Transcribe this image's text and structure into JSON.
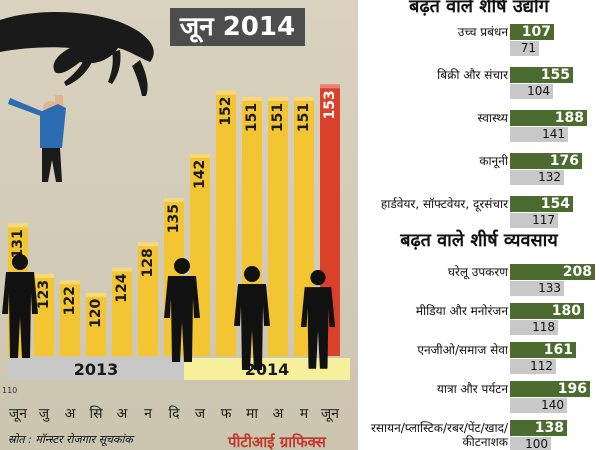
{
  "chart_data": [
    {
      "type": "bar",
      "title": "जून 2014",
      "categories": [
        "जून",
        "जु",
        "अ",
        "सि",
        "अ",
        "न",
        "दि",
        "ज",
        "फ",
        "मा",
        "अ",
        "म",
        "जून"
      ],
      "values": [
        131,
        123,
        122,
        120,
        124,
        128,
        135,
        142,
        152,
        151,
        151,
        151,
        153
      ],
      "highlight_index": 12,
      "year_labels": [
        "2013",
        "2014"
      ],
      "ylim": [
        110,
        160
      ],
      "y_baseline_label": "110",
      "colors": {
        "bar": "#f3c533",
        "highlight": "#d9412a",
        "year_2013": "#c8c8c8",
        "year_2014": "#f6ef9b"
      }
    },
    {
      "type": "bar",
      "title": "बढ़त वाले शीर्ष उद्योग",
      "categories": [
        "उच्च प्रबंधन",
        "बिक्री और संचार",
        "स्वास्थ्य",
        "कानूनी",
        "हार्डवेयर, सॉफ्टवेयर, दूरसंचार"
      ],
      "series": [
        {
          "values": [
            107,
            155,
            188,
            176,
            154
          ]
        },
        {
          "values": [
            71,
            104,
            141,
            132,
            117
          ]
        }
      ],
      "colors": {
        "new": "#4b6b2f",
        "old": "#c8c8c8"
      }
    },
    {
      "type": "bar",
      "title": "बढ़त वाले शीर्ष व्यवसाय",
      "categories": [
        "घरेलू उपकरण",
        "मीडिया और मनोरंजन",
        "एनजीओ/समाज सेवा",
        "यात्रा और पर्यटन",
        "रसायन/प्लास्टिक/रबर/पेंट/खाद/कीटनाशक"
      ],
      "series": [
        {
          "values": [
            208,
            180,
            161,
            196,
            138
          ]
        },
        {
          "values": [
            133,
            118,
            112,
            140,
            100
          ]
        }
      ],
      "colors": {
        "new": "#4b6b2f",
        "old": "#c8c8c8"
      }
    }
  ],
  "footer": {
    "source": "स्रोत : मॉन्स्टर रोजगार सूचकांक",
    "brand": "पीटीआई ग्राफिक्स"
  },
  "icons": [
    "hand-icon",
    "hanging-person-icon",
    "businessman-silhouette-icon"
  ]
}
